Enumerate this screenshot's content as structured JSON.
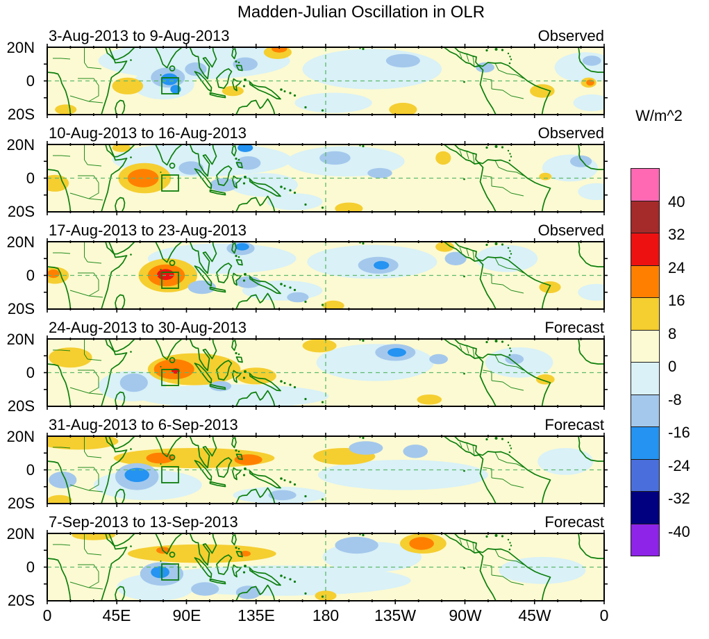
{
  "chart_data": {
    "type": "heatmap",
    "title": "Madden-Julian Oscillation in OLR",
    "units": "W/m^2",
    "x_axis": {
      "labels": [
        "0",
        "45E",
        "90E",
        "135E",
        "180",
        "135W",
        "90W",
        "45W",
        "0"
      ],
      "range_deg": [
        0,
        360
      ],
      "tick_step_deg": 45
    },
    "y_axis": {
      "labels": [
        "20N",
        "0",
        "20S"
      ],
      "range_deg": [
        -20,
        20
      ]
    },
    "colorbar": {
      "ticks": [
        "40",
        "32",
        "24",
        "16",
        "8",
        "0",
        "-8",
        "-16",
        "-24",
        "-32",
        "-40"
      ],
      "colors": [
        "#FF69B4",
        "#A52A2A",
        "#EE1111",
        "#FF8000",
        "#F5CE30",
        "#FCFAD2",
        "#D9F1F7",
        "#A4C8EC",
        "#2493F2",
        "#4A6FDC",
        "#000080",
        "#8E24E8"
      ]
    },
    "palette": {
      "0": "#FCFAD2",
      "8": "#F5CE30",
      "16": "#FF8000",
      "24": "#EE1111",
      "32": "#A52A2A",
      "40": "#FF69B4",
      "-8": "#D9F1F7",
      "-16": "#A4C8EC",
      "-24": "#2493F2",
      "-32": "#4A6FDC",
      "-40": "#000080"
    },
    "anomaly_note": "anomalies are [lon_deg_east, lat_deg, rx_deg, ry_deg, contour_level_W_per_m2]",
    "panels": [
      {
        "date_range": "3-Aug-2013 to 9-Aug-2013",
        "mode": "Observed",
        "anomalies": [
          [
            95,
            12,
            62,
            11,
            -8
          ],
          [
            75,
            -2,
            20,
            9,
            -8
          ],
          [
            210,
            7,
            45,
            12,
            -8
          ],
          [
            348,
            8,
            20,
            9,
            -8
          ],
          [
            185,
            -13,
            25,
            6,
            -8
          ],
          [
            352,
            -13,
            12,
            5,
            -8
          ],
          [
            52,
            -3,
            10,
            5,
            8
          ],
          [
            120,
            -6,
            7,
            3,
            8
          ],
          [
            149,
            17,
            9,
            4,
            8
          ],
          [
            230,
            -17,
            9,
            4,
            8
          ],
          [
            320,
            -6,
            8,
            4,
            8
          ],
          [
            350,
            -1,
            5,
            3,
            8
          ],
          [
            12,
            -17,
            7,
            3,
            8
          ],
          [
            78,
            2,
            11,
            6,
            -16
          ],
          [
            96,
            7,
            7,
            4,
            -16
          ],
          [
            128,
            10,
            8,
            4,
            -16
          ],
          [
            230,
            12,
            11,
            4,
            -16
          ],
          [
            283,
            8,
            6,
            3,
            -16
          ],
          [
            352,
            12,
            6,
            3,
            -16
          ],
          [
            150,
            19,
            5,
            2.2,
            16
          ],
          [
            351,
            -1,
            2.6,
            1.8,
            16
          ],
          [
            79,
            1,
            5.5,
            3.5,
            -24
          ],
          [
            83,
            -5,
            3.4,
            2.6,
            -24
          ]
        ]
      },
      {
        "date_range": "10-Aug-2013 to 16-Aug-2013",
        "mode": "Observed",
        "anomalies": [
          [
            100,
            11,
            58,
            10,
            -8
          ],
          [
            140,
            -4,
            22,
            7,
            -8
          ],
          [
            193,
            10,
            38,
            9,
            -8
          ],
          [
            338,
            6,
            18,
            8,
            -8
          ],
          [
            355,
            -8,
            12,
            5,
            -8
          ],
          [
            160,
            -14,
            18,
            5,
            -8
          ],
          [
            63,
            0,
            17,
            9,
            8
          ],
          [
            5,
            -3,
            9,
            5,
            8
          ],
          [
            195,
            -18,
            9,
            3.5,
            8
          ],
          [
            256,
            12,
            5,
            4,
            8
          ],
          [
            48,
            18,
            6,
            2.5,
            8
          ],
          [
            322,
            1,
            4,
            2.2,
            8
          ],
          [
            93,
            6,
            8,
            4,
            -16
          ],
          [
            114,
            -4,
            9,
            4,
            -16
          ],
          [
            130,
            9,
            8,
            4,
            -16
          ],
          [
            186,
            12,
            10,
            4,
            -16
          ],
          [
            215,
            3,
            8,
            3,
            -16
          ],
          [
            345,
            10,
            7,
            3.5,
            -16
          ],
          [
            62,
            0,
            10,
            5.5,
            16
          ],
          [
            128,
            18,
            5,
            2.5,
            -24
          ]
        ]
      },
      {
        "date_range": "17-Aug-2013 to 23-Aug-2013",
        "mode": "Observed",
        "anomalies": [
          [
            113,
            10,
            48,
            9,
            -8
          ],
          [
            210,
            8,
            42,
            10,
            -8
          ],
          [
            152,
            -9,
            26,
            6,
            -8
          ],
          [
            297,
            10,
            20,
            8,
            -8
          ],
          [
            355,
            -10,
            12,
            5,
            -8
          ],
          [
            78,
            0,
            19,
            10,
            8
          ],
          [
            5,
            0,
            9,
            5,
            8
          ],
          [
            257,
            17,
            6,
            3,
            8
          ],
          [
            325,
            -7,
            7,
            3.5,
            8
          ],
          [
            185,
            -18,
            7,
            3,
            8
          ],
          [
            100,
            -7,
            9,
            4,
            -16
          ],
          [
            130,
            -4,
            8,
            3.5,
            -16
          ],
          [
            125,
            16,
            9,
            4,
            -16
          ],
          [
            214,
            6,
            13,
            5,
            -16
          ],
          [
            264,
            10,
            7,
            4,
            -16
          ],
          [
            162,
            -13,
            7,
            3,
            -16
          ],
          [
            77,
            0,
            12,
            6.5,
            16
          ],
          [
            4,
            1,
            4,
            2.5,
            16
          ],
          [
            126,
            17,
            4.5,
            2.2,
            -24
          ],
          [
            216,
            6,
            5,
            2.5,
            -24
          ],
          [
            76.5,
            0.5,
            5.5,
            3.2,
            24
          ]
        ]
      },
      {
        "date_range": "24-Aug-2013 to 30-Aug-2013",
        "mode": "Forecast",
        "anomalies": [
          [
            120,
            -14,
            62,
            7,
            -8
          ],
          [
            55,
            -8,
            22,
            9,
            -8
          ],
          [
            212,
            6,
            38,
            11,
            -8
          ],
          [
            305,
            6,
            22,
            9,
            -8
          ],
          [
            95,
            2,
            30,
            9.5,
            8
          ],
          [
            135,
            -2,
            13,
            5,
            8
          ],
          [
            176,
            16,
            11,
            4,
            8
          ],
          [
            15,
            9,
            14,
            6,
            8
          ],
          [
            322,
            -4,
            6,
            3,
            8
          ],
          [
            247,
            -16,
            8,
            3,
            8
          ],
          [
            56,
            -6,
            9,
            5.5,
            -16
          ],
          [
            112,
            -8,
            7,
            3,
            -16
          ],
          [
            225,
            12,
            13,
            5,
            -16
          ],
          [
            253,
            8,
            6,
            3,
            -16
          ],
          [
            302,
            8,
            6,
            3,
            -16
          ],
          [
            82,
            2,
            13,
            6,
            16
          ],
          [
            226,
            12,
            6,
            2.6,
            -24
          ],
          [
            83,
            1,
            2.6,
            1.6,
            24
          ]
        ]
      },
      {
        "date_range": "31-Aug-2013 to 6-Sep-2013",
        "mode": "Forecast",
        "anomalies": [
          [
            65,
            -9,
            35,
            9,
            -8
          ],
          [
            230,
            -3,
            55,
            9,
            -8
          ],
          [
            150,
            -15,
            30,
            5,
            -8
          ],
          [
            335,
            5,
            18,
            8,
            -8
          ],
          [
            95,
            7,
            52,
            6,
            8
          ],
          [
            20,
            17,
            26,
            5,
            8
          ],
          [
            192,
            8,
            20,
            5,
            8
          ],
          [
            8,
            -18,
            8,
            3,
            8
          ],
          [
            58,
            -4,
            14,
            8,
            -16
          ],
          [
            10,
            -6,
            9,
            5,
            -16
          ],
          [
            206,
            13,
            11,
            4,
            -16
          ],
          [
            238,
            11,
            8,
            4,
            -16
          ],
          [
            152,
            -15,
            9,
            3,
            -16
          ],
          [
            73,
            7,
            9,
            3.2,
            16
          ],
          [
            130,
            6,
            9,
            3.2,
            16
          ],
          [
            58,
            -3,
            8,
            4.2,
            -24
          ]
        ]
      },
      {
        "date_range": "7-Sep-2013 to 13-Sep-2013",
        "mode": "Forecast",
        "anomalies": [
          [
            150,
            -8,
            85,
            9,
            -8
          ],
          [
            210,
            6,
            32,
            9,
            -8
          ],
          [
            320,
            -2,
            28,
            8,
            -8
          ],
          [
            70,
            -12,
            25,
            8,
            -8
          ],
          [
            100,
            8,
            48,
            5.5,
            8
          ],
          [
            243,
            14,
            15,
            6,
            8
          ],
          [
            30,
            19,
            14,
            3,
            8
          ],
          [
            180,
            -17,
            7,
            3,
            8
          ],
          [
            74,
            -4,
            14,
            7,
            -16
          ],
          [
            102,
            -13,
            9,
            4,
            -16
          ],
          [
            200,
            13,
            14,
            5,
            -16
          ],
          [
            130,
            -15,
            8,
            4,
            -16
          ],
          [
            75,
            10,
            4.5,
            2,
            16
          ],
          [
            128,
            8,
            3.5,
            1.7,
            16
          ],
          [
            242,
            14,
            8,
            3.8,
            16
          ],
          [
            73,
            -3,
            6,
            3.5,
            -24
          ]
        ]
      }
    ]
  }
}
